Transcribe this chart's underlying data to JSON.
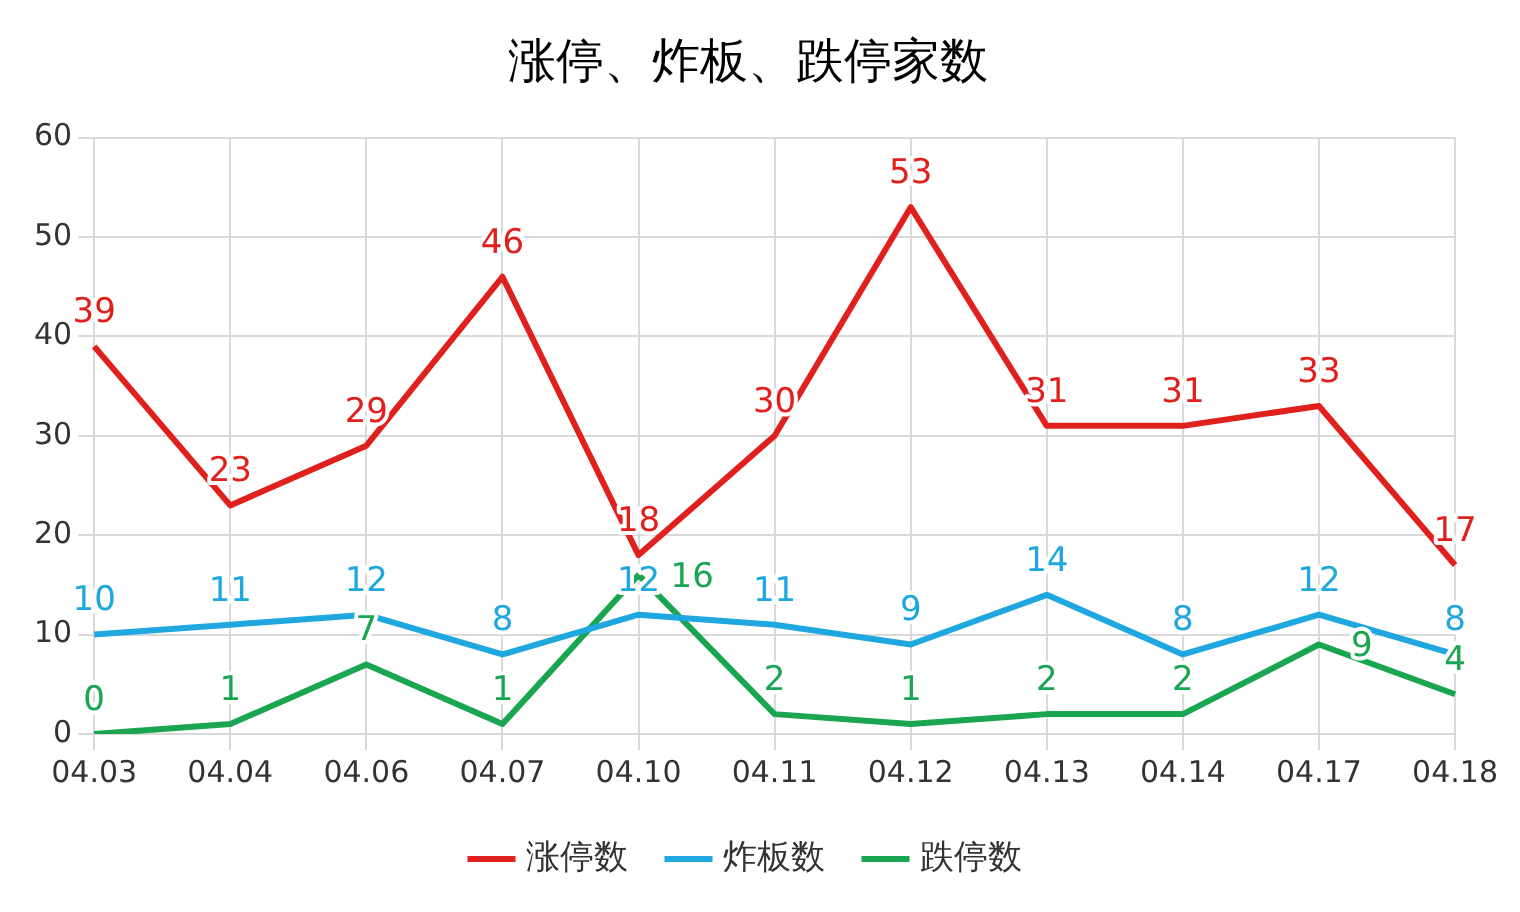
{
  "chart_data": {
    "type": "line",
    "title": "涨停、炸板、跌停家数",
    "categories": [
      "04.03",
      "04.04",
      "04.06",
      "04.07",
      "04.10",
      "04.11",
      "04.12",
      "04.13",
      "04.14",
      "04.17",
      "04.18"
    ],
    "series": [
      {
        "name": "涨停数",
        "color": "#e0201c",
        "values": [
          39,
          23,
          29,
          46,
          18,
          30,
          53,
          31,
          31,
          33,
          17
        ]
      },
      {
        "name": "炸板数",
        "color": "#1fa8e0",
        "values": [
          10,
          11,
          12,
          8,
          12,
          11,
          9,
          14,
          8,
          12,
          8
        ]
      },
      {
        "name": "跌停数",
        "color": "#1aa650",
        "values": [
          0,
          1,
          7,
          1,
          16,
          2,
          1,
          2,
          2,
          9,
          4
        ]
      }
    ],
    "ylim": [
      0,
      60
    ],
    "yticks": [
      0,
      10,
      20,
      30,
      40,
      50,
      60
    ],
    "grid": true,
    "legend": "bottom",
    "data_labels": true,
    "marker": "none",
    "line_style": "solid"
  }
}
